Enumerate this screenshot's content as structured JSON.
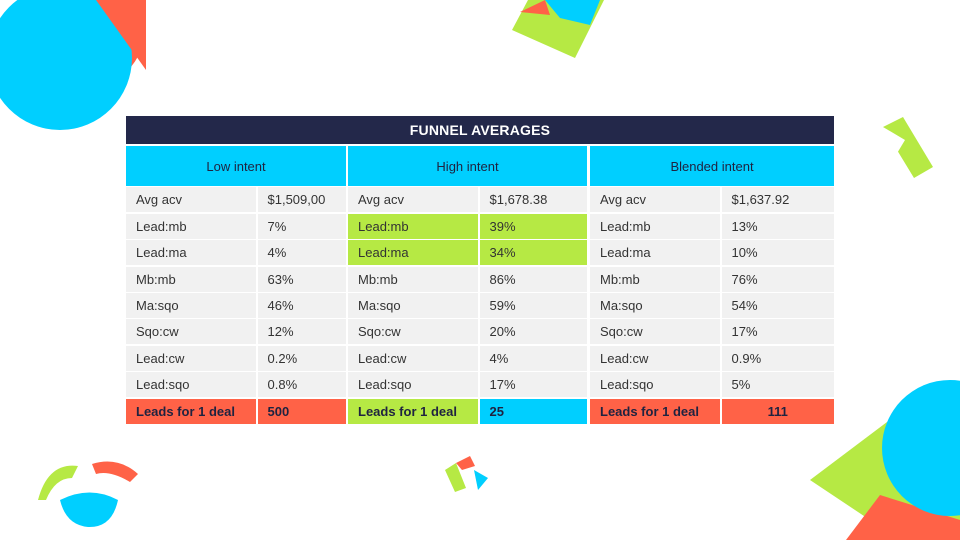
{
  "title": "FUNNEL AVERAGES",
  "colors": {
    "navy": "#23284a",
    "cyan": "#00cfff",
    "lime": "#b6e944",
    "coral": "#ff6247",
    "cell": "#f1f1f1"
  },
  "panels": [
    {
      "heading": "Low intent",
      "rows": [
        {
          "label": "Avg acv",
          "value": "$1,509,00"
        },
        {
          "label": "Lead:mb",
          "value": "7%"
        },
        {
          "label": "Lead:ma",
          "value": "4%"
        },
        {
          "label": "Mb:mb",
          "value": "63%"
        },
        {
          "label": "Ma:sqo",
          "value": "46%"
        },
        {
          "label": "Sqo:cw",
          "value": "12%"
        },
        {
          "label": "Lead:cw",
          "value": "0.2%"
        },
        {
          "label": "Lead:sqo",
          "value": "0.8%"
        }
      ],
      "total": {
        "label": "Leads for 1 deal",
        "value": "500"
      }
    },
    {
      "heading": "High intent",
      "rows": [
        {
          "label": "Avg acv",
          "value": "$1,678.38"
        },
        {
          "label": "Lead:mb",
          "value": "39%"
        },
        {
          "label": "Lead:ma",
          "value": "34%"
        },
        {
          "label": "Mb:mb",
          "value": "86%"
        },
        {
          "label": "Ma:sqo",
          "value": "59%"
        },
        {
          "label": "Sqo:cw",
          "value": "20%"
        },
        {
          "label": "Lead:cw",
          "value": "4%"
        },
        {
          "label": "Lead:sqo",
          "value": "17%"
        }
      ],
      "total": {
        "label": "Leads for 1 deal",
        "value": "25"
      }
    },
    {
      "heading": "Blended intent",
      "rows": [
        {
          "label": "Avg acv",
          "value": "$1,637.92"
        },
        {
          "label": "Lead:mb",
          "value": "13%"
        },
        {
          "label": "Lead:ma",
          "value": "10%"
        },
        {
          "label": "Mb:mb",
          "value": "76%"
        },
        {
          "label": "Ma:sqo",
          "value": "54%"
        },
        {
          "label": "Sqo:cw",
          "value": "17%"
        },
        {
          "label": "Lead:cw",
          "value": "0.9%"
        },
        {
          "label": "Lead:sqo",
          "value": "5%"
        }
      ],
      "total": {
        "label": "Leads for 1 deal",
        "value": "111"
      }
    }
  ]
}
